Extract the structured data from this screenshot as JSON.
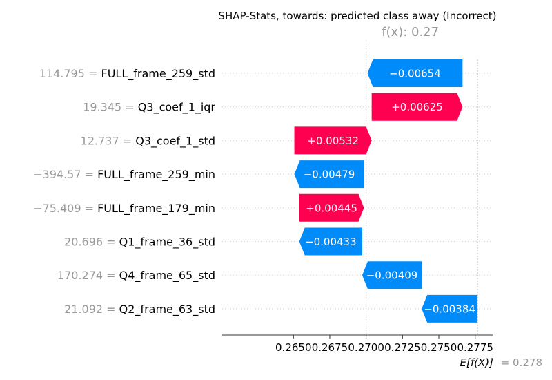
{
  "chart_data": {
    "type": "waterfall",
    "title": "SHAP-Stats, towards: predicted class away (Incorrect)",
    "fx_label": "f(x): 0.27",
    "expected_label_main": "E[f(X)]",
    "expected_label_value": "= 0.278",
    "base_value": 0.27766,
    "output_value": 0.27,
    "xlim": [
      0.2601,
      0.2787
    ],
    "x_ticks": [
      0.265,
      0.2675,
      0.27,
      0.2725,
      0.275,
      0.2775
    ],
    "x_tick_labels": [
      "0.2650",
      "0.2675",
      "0.2700",
      "0.2725",
      "0.2750",
      "0.2775"
    ],
    "features": [
      {
        "value_label": "114.795",
        "name": "FULL_frame_259_std",
        "shap": -0.00654,
        "label": "−0.00654"
      },
      {
        "value_label": "19.345",
        "name": "Q3_coef_1_iqr",
        "shap": 0.00625,
        "label": "+0.00625"
      },
      {
        "value_label": "12.737",
        "name": "Q3_coef_1_std",
        "shap": 0.00532,
        "label": "+0.00532"
      },
      {
        "value_label": "−394.57",
        "name": "FULL_frame_259_min",
        "shap": -0.00479,
        "label": "−0.00479"
      },
      {
        "value_label": "−75.409",
        "name": "FULL_frame_179_min",
        "shap": 0.00445,
        "label": "+0.00445"
      },
      {
        "value_label": "20.696",
        "name": "Q1_frame_36_std",
        "shap": -0.00433,
        "label": "−0.00433"
      },
      {
        "value_label": "170.274",
        "name": "Q4_frame_65_std",
        "shap": -0.00409,
        "label": "−0.00409"
      },
      {
        "value_label": "21.092",
        "name": "Q2_frame_63_std",
        "shap": -0.00384,
        "label": "−0.00384"
      }
    ],
    "colors": {
      "positive": "#ff0051",
      "negative": "#008bfb",
      "muted_text": "#999999",
      "grid": "#cccccc"
    }
  }
}
